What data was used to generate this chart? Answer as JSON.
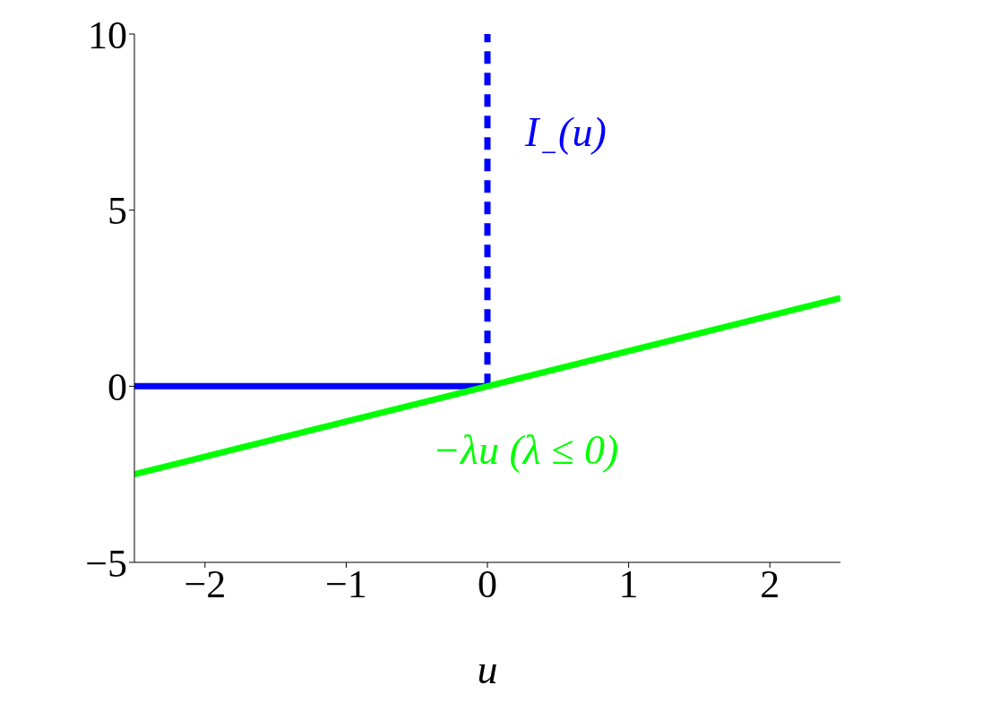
{
  "chart_data": {
    "type": "line",
    "xlabel": "u",
    "xlim": [
      -2.5,
      2.5
    ],
    "xticks": [
      -2,
      -1,
      0,
      1,
      2
    ],
    "ylim": [
      -5,
      10
    ],
    "yticks": [
      -5,
      0,
      5,
      10
    ],
    "series": [
      {
        "color": "#0000ff",
        "x": [
          -2.5,
          0
        ],
        "values": [
          0,
          0
        ],
        "line_style": "solid"
      },
      {
        "name": "I$_{−}$(u)",
        "color": "#0000ff",
        "x": [
          0,
          0
        ],
        "values": [
          0,
          10
        ],
        "line_style": "dashed"
      },
      {
        "name": "−λu (λ ≤ 0)",
        "color": "#00ff00",
        "x": [
          -2.5,
          2.5
        ],
        "values": [
          -2.5,
          2.5
        ],
        "line_style": "solid"
      }
    ]
  }
}
